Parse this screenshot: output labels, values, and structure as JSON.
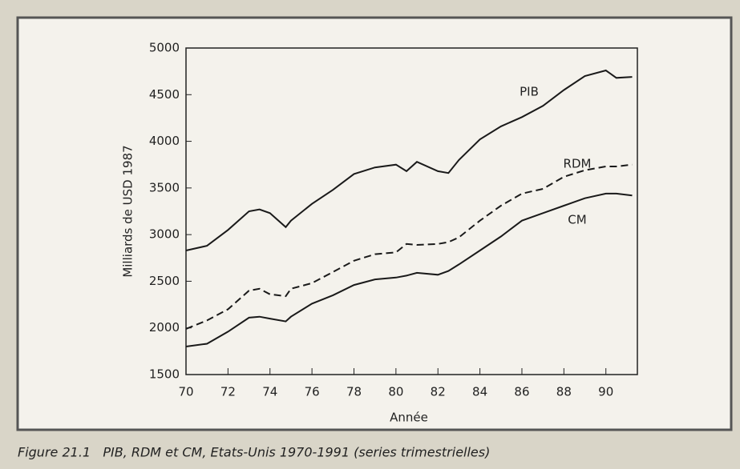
{
  "chart_data": {
    "type": "line",
    "caption": "Figure 21.1   PIB, RDM et CM, Etats-Unis 1970-1991 (series trimestrielles)",
    "xlabel": "Année",
    "ylabel": "Milliards de USD 1987",
    "x": [
      70,
      71,
      72,
      73,
      73.5,
      74,
      74.75,
      75,
      76,
      77,
      78,
      79,
      80,
      80.5,
      81,
      82,
      82.5,
      83,
      84,
      85,
      86,
      87,
      88,
      89,
      90,
      90.5,
      91.25
    ],
    "series": [
      {
        "name": "PIB",
        "color": "#1a1a1a",
        "dash": false,
        "values": [
          2830,
          2880,
          3050,
          3250,
          3270,
          3230,
          3080,
          3150,
          3330,
          3480,
          3650,
          3720,
          3750,
          3680,
          3780,
          3680,
          3660,
          3800,
          4020,
          4160,
          4260,
          4380,
          4550,
          4700,
          4760,
          4680,
          4690
        ]
      },
      {
        "name": "RDM",
        "color": "#1a1a1a",
        "dash": true,
        "values": [
          1990,
          2080,
          2200,
          2400,
          2420,
          2360,
          2340,
          2420,
          2480,
          2600,
          2720,
          2790,
          2810,
          2900,
          2890,
          2900,
          2920,
          2970,
          3150,
          3310,
          3440,
          3490,
          3620,
          3690,
          3730,
          3730,
          3750
        ]
      },
      {
        "name": "CM",
        "color": "#1a1a1a",
        "dash": false,
        "values": [
          1800,
          1830,
          1960,
          2110,
          2120,
          2100,
          2070,
          2120,
          2260,
          2350,
          2460,
          2520,
          2540,
          2560,
          2590,
          2570,
          2610,
          2680,
          2830,
          2980,
          3150,
          3230,
          3310,
          3390,
          3440,
          3440,
          3420
        ]
      }
    ],
    "xlim": [
      70,
      91.5
    ],
    "xticks": [
      70,
      72,
      74,
      76,
      78,
      80,
      82,
      84,
      86,
      88,
      90
    ],
    "ylim": [
      1500,
      5000
    ],
    "yticks": [
      1500,
      2000,
      2500,
      3000,
      3500,
      4000,
      4500,
      5000
    ],
    "grid": false
  }
}
